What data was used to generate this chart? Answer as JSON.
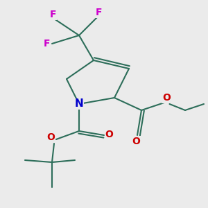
{
  "background_color": "#ebebeb",
  "fig_size": [
    3.0,
    3.0
  ],
  "dpi": 100,
  "bond_color": "#2d6e5a",
  "N_color": "#0000cc",
  "O_color": "#cc0000",
  "F_color": "#cc00cc",
  "line_width": 1.5,
  "font_size_atoms": 11,
  "font_size_small": 10,
  "xlim": [
    0,
    10
  ],
  "ylim": [
    0,
    10
  ]
}
